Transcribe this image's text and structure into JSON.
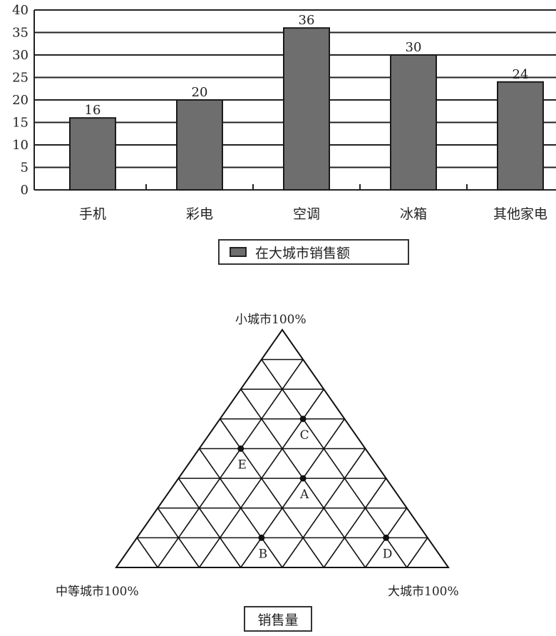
{
  "chart_data": [
    {
      "type": "bar",
      "categories": [
        "手机",
        "彩电",
        "空调",
        "冰箱",
        "其他家电"
      ],
      "values": [
        16,
        20,
        36,
        30,
        24
      ],
      "data_labels": [
        "16",
        "20",
        "36",
        "30",
        "24"
      ],
      "y_ticks": [
        "0",
        "5",
        "10",
        "15",
        "20",
        "25",
        "30",
        "35",
        "40"
      ],
      "ylim": [
        0,
        40
      ],
      "ylabel": "",
      "legend": "在大城市销售额",
      "bar_color": "#6e6e6e",
      "grid": true
    },
    {
      "type": "ternary",
      "corner_labels": {
        "top": "小城市100%",
        "left": "中等城市100%",
        "right": "大城市100%"
      },
      "grid_divisions": 8,
      "points": [
        {
          "label": "A",
          "large": 0.375,
          "small": 0.375,
          "medium": 0.25
        },
        {
          "label": "B",
          "large": 0.375,
          "small": 0.125,
          "medium": 0.5
        },
        {
          "label": "C",
          "large": 0.25,
          "small": 0.625,
          "medium": 0.125
        },
        {
          "label": "D",
          "large": 0.75,
          "small": 0.125,
          "medium": 0.125
        },
        {
          "label": "E",
          "large": 0.125,
          "small": 0.5,
          "medium": 0.375
        }
      ],
      "caption": "销售量"
    }
  ]
}
